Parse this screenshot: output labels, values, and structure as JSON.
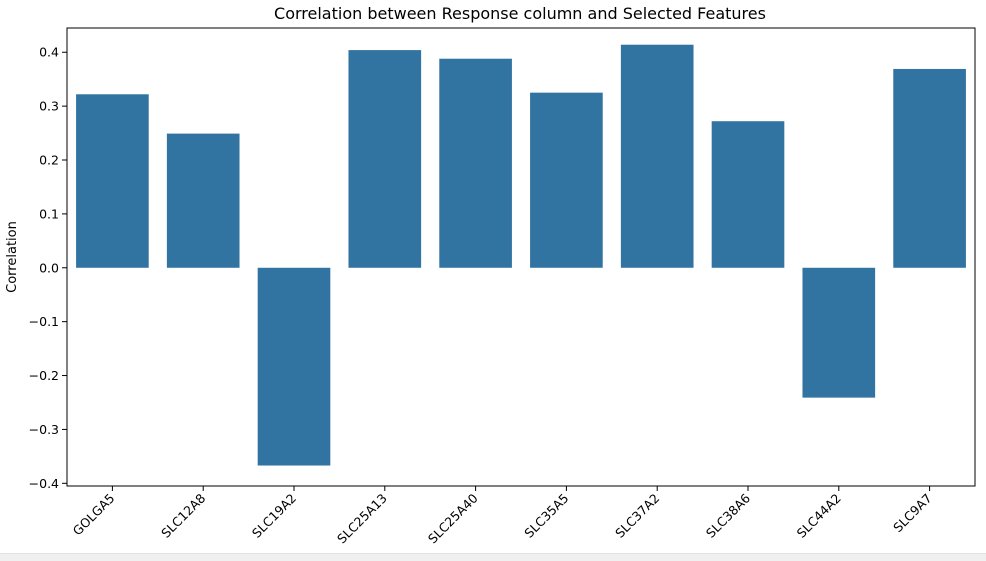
{
  "chart_data": {
    "type": "bar",
    "title": "Correlation between Response column and Selected Features",
    "xlabel": "",
    "ylabel": "Correlation",
    "categories": [
      "GOLGA5",
      "SLC12A8",
      "SLC19A2",
      "SLC25A13",
      "SLC25A40",
      "SLC35A5",
      "SLC37A2",
      "SLC38A6",
      "SLC44A2",
      "SLC9A7"
    ],
    "values": [
      0.322,
      0.249,
      -0.367,
      0.404,
      0.388,
      0.325,
      0.414,
      0.272,
      -0.241,
      0.369
    ],
    "ylim": [
      -0.405,
      0.445
    ],
    "yticks": [
      -0.4,
      -0.3,
      -0.2,
      -0.1,
      0.0,
      0.1,
      0.2,
      0.3,
      0.4
    ],
    "ytick_labels": [
      "−0.4",
      "−0.3",
      "−0.2",
      "−0.1",
      "0.0",
      "0.1",
      "0.2",
      "0.3",
      "0.4"
    ],
    "bar_color": "#3274a1",
    "grid": false,
    "legend": "none"
  }
}
